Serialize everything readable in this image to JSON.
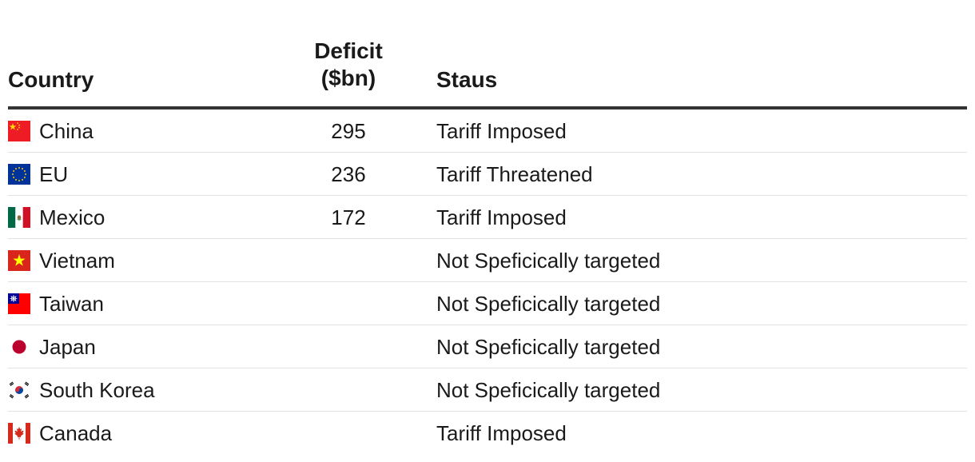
{
  "chart_data": {
    "type": "table",
    "columns": [
      {
        "key": "country",
        "label": "Country"
      },
      {
        "key": "deficit",
        "label_lines": [
          "Deficit",
          "($bn)"
        ]
      },
      {
        "key": "status",
        "label": "Staus"
      }
    ],
    "rows": [
      {
        "country": "China",
        "flag": "china-flag-icon",
        "deficit": "295",
        "status": "Tariff Imposed"
      },
      {
        "country": "EU",
        "flag": "eu-flag-icon",
        "deficit": "236",
        "status": "Tariff Threatened"
      },
      {
        "country": "Mexico",
        "flag": "mexico-flag-icon",
        "deficit": "172",
        "status": "Tariff Imposed"
      },
      {
        "country": "Vietnam",
        "flag": "vietnam-flag-icon",
        "deficit": "",
        "status": "Not Speficically targeted"
      },
      {
        "country": "Taiwan",
        "flag": "taiwan-flag-icon",
        "deficit": "",
        "status": "Not Speficically targeted"
      },
      {
        "country": "Japan",
        "flag": "japan-flag-icon",
        "deficit": "",
        "status": "Not Speficically targeted"
      },
      {
        "country": "South Korea",
        "flag": "south-korea-flag-icon",
        "deficit": "",
        "status": "Not Speficically targeted"
      },
      {
        "country": "Canada",
        "flag": "canada-flag-icon",
        "deficit": "",
        "status": "Tariff Imposed"
      }
    ]
  }
}
